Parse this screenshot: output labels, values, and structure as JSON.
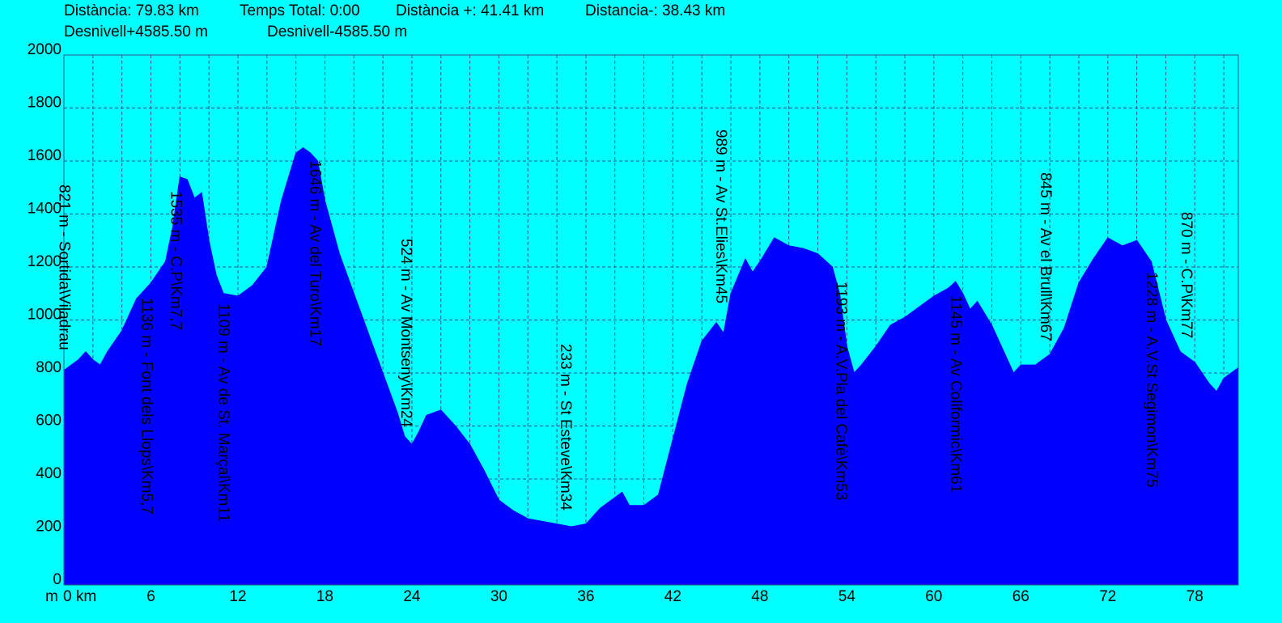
{
  "chart_data": {
    "type": "area",
    "summary": [
      "Distància: 79.83 km",
      "Temps Total: 0:00",
      "Distància +: 41.41 km",
      "Distancia-: 38.43 km",
      "Desnivell+4585.50 m",
      "Desnivell-4585.50 m"
    ],
    "y_label": "m",
    "color": "#0000ff",
    "background": "#00ffff",
    "grid": true,
    "xlim": [
      0,
      81
    ],
    "ylim": [
      0,
      2000
    ],
    "xticks": [
      {
        "value": 0,
        "label": "0 km"
      },
      6,
      12,
      18,
      24,
      30,
      36,
      42,
      48,
      54,
      60,
      66,
      72,
      78
    ],
    "x_grid": [
      2,
      4,
      6,
      8,
      10,
      12,
      14,
      16,
      18,
      20,
      22,
      24,
      26,
      28,
      30,
      32,
      34,
      36,
      38,
      40,
      42,
      44,
      46,
      48,
      50,
      52,
      54,
      56,
      58,
      60,
      62,
      64,
      66,
      68,
      70,
      72,
      74,
      76,
      78,
      80
    ],
    "yticks": [
      0,
      200,
      400,
      600,
      800,
      1000,
      1200,
      1400,
      1600,
      1800,
      2000
    ],
    "x": [
      0,
      0.5,
      1,
      1.5,
      2,
      2.5,
      3,
      4,
      5,
      6,
      7,
      7.5,
      8,
      8.5,
      9,
      9.5,
      10,
      10.5,
      11,
      12,
      13,
      14,
      15,
      16,
      16.5,
      17,
      17.5,
      18,
      19,
      20,
      21,
      22,
      23,
      23.5,
      24,
      24.5,
      25,
      26,
      27,
      28,
      29,
      30,
      31,
      32,
      33,
      34,
      35,
      36,
      37,
      38,
      38.5,
      39,
      40,
      41,
      42,
      43,
      44,
      45,
      45.5,
      46,
      47,
      47.5,
      48,
      49,
      50,
      51,
      52,
      53,
      53.5,
      54,
      54.5,
      55,
      56,
      57,
      58,
      59,
      60,
      61,
      61.5,
      62,
      62.5,
      63,
      64,
      65,
      65.5,
      66,
      67,
      68,
      69,
      70,
      71,
      72,
      73,
      74,
      75,
      76,
      77,
      78,
      79,
      79.5,
      80,
      81
    ],
    "values": [
      810,
      830,
      850,
      880,
      850,
      830,
      880,
      960,
      1080,
      1140,
      1220,
      1350,
      1540,
      1530,
      1460,
      1480,
      1300,
      1170,
      1100,
      1090,
      1130,
      1200,
      1450,
      1630,
      1650,
      1630,
      1600,
      1450,
      1250,
      1100,
      950,
      800,
      650,
      560,
      530,
      580,
      640,
      660,
      600,
      530,
      430,
      320,
      280,
      250,
      240,
      230,
      220,
      230,
      290,
      330,
      350,
      300,
      300,
      340,
      550,
      760,
      920,
      990,
      950,
      1100,
      1230,
      1180,
      1220,
      1310,
      1280,
      1270,
      1250,
      1200,
      1100,
      900,
      800,
      830,
      900,
      980,
      1010,
      1050,
      1090,
      1120,
      1145,
      1100,
      1040,
      1070,
      980,
      860,
      800,
      830,
      830,
      870,
      970,
      1140,
      1230,
      1310,
      1280,
      1300,
      1220,
      1000,
      880,
      840,
      760,
      730,
      780,
      820
    ],
    "annotations": [
      {
        "text": "821 m - Sortida\\Viladrau",
        "x": 0.3,
        "y": 1511
      },
      {
        "text": "1136 m - Font dels Llops\\Km5,7",
        "x": 6.0,
        "y": 1084
      },
      {
        "text": "1535 m - C.P\\Km7,7",
        "x": 8.0,
        "y": 1487
      },
      {
        "text": "1109 m - Av de St. Marçal\\Km11",
        "x": 11.3,
        "y": 1063
      },
      {
        "text": "1646 m - Av del Turo\\Km17",
        "x": 17.6,
        "y": 1603
      },
      {
        "text": "524 m - Av Montseny\\Km24",
        "x": 23.9,
        "y": 1307
      },
      {
        "text": "233 m - St Esteve\\Km34",
        "x": 34.9,
        "y": 910
      },
      {
        "text": "989 m - Av St.Elies\\Km45",
        "x": 45.6,
        "y": 1719
      },
      {
        "text": "1193 m - A.V.Pla del Cafè\\Km53",
        "x": 53.9,
        "y": 1145
      },
      {
        "text": "1145 m - Av Collformic\\Km61",
        "x": 61.8,
        "y": 1093
      },
      {
        "text": "845 m - Av el Brull\\Km67",
        "x": 68.0,
        "y": 1557
      },
      {
        "text": "1228 m - A.V.St Segimon\\Km75",
        "x": 75.3,
        "y": 1182
      },
      {
        "text": "870 m - C.P\\Km77",
        "x": 77.7,
        "y": 1408
      }
    ]
  }
}
